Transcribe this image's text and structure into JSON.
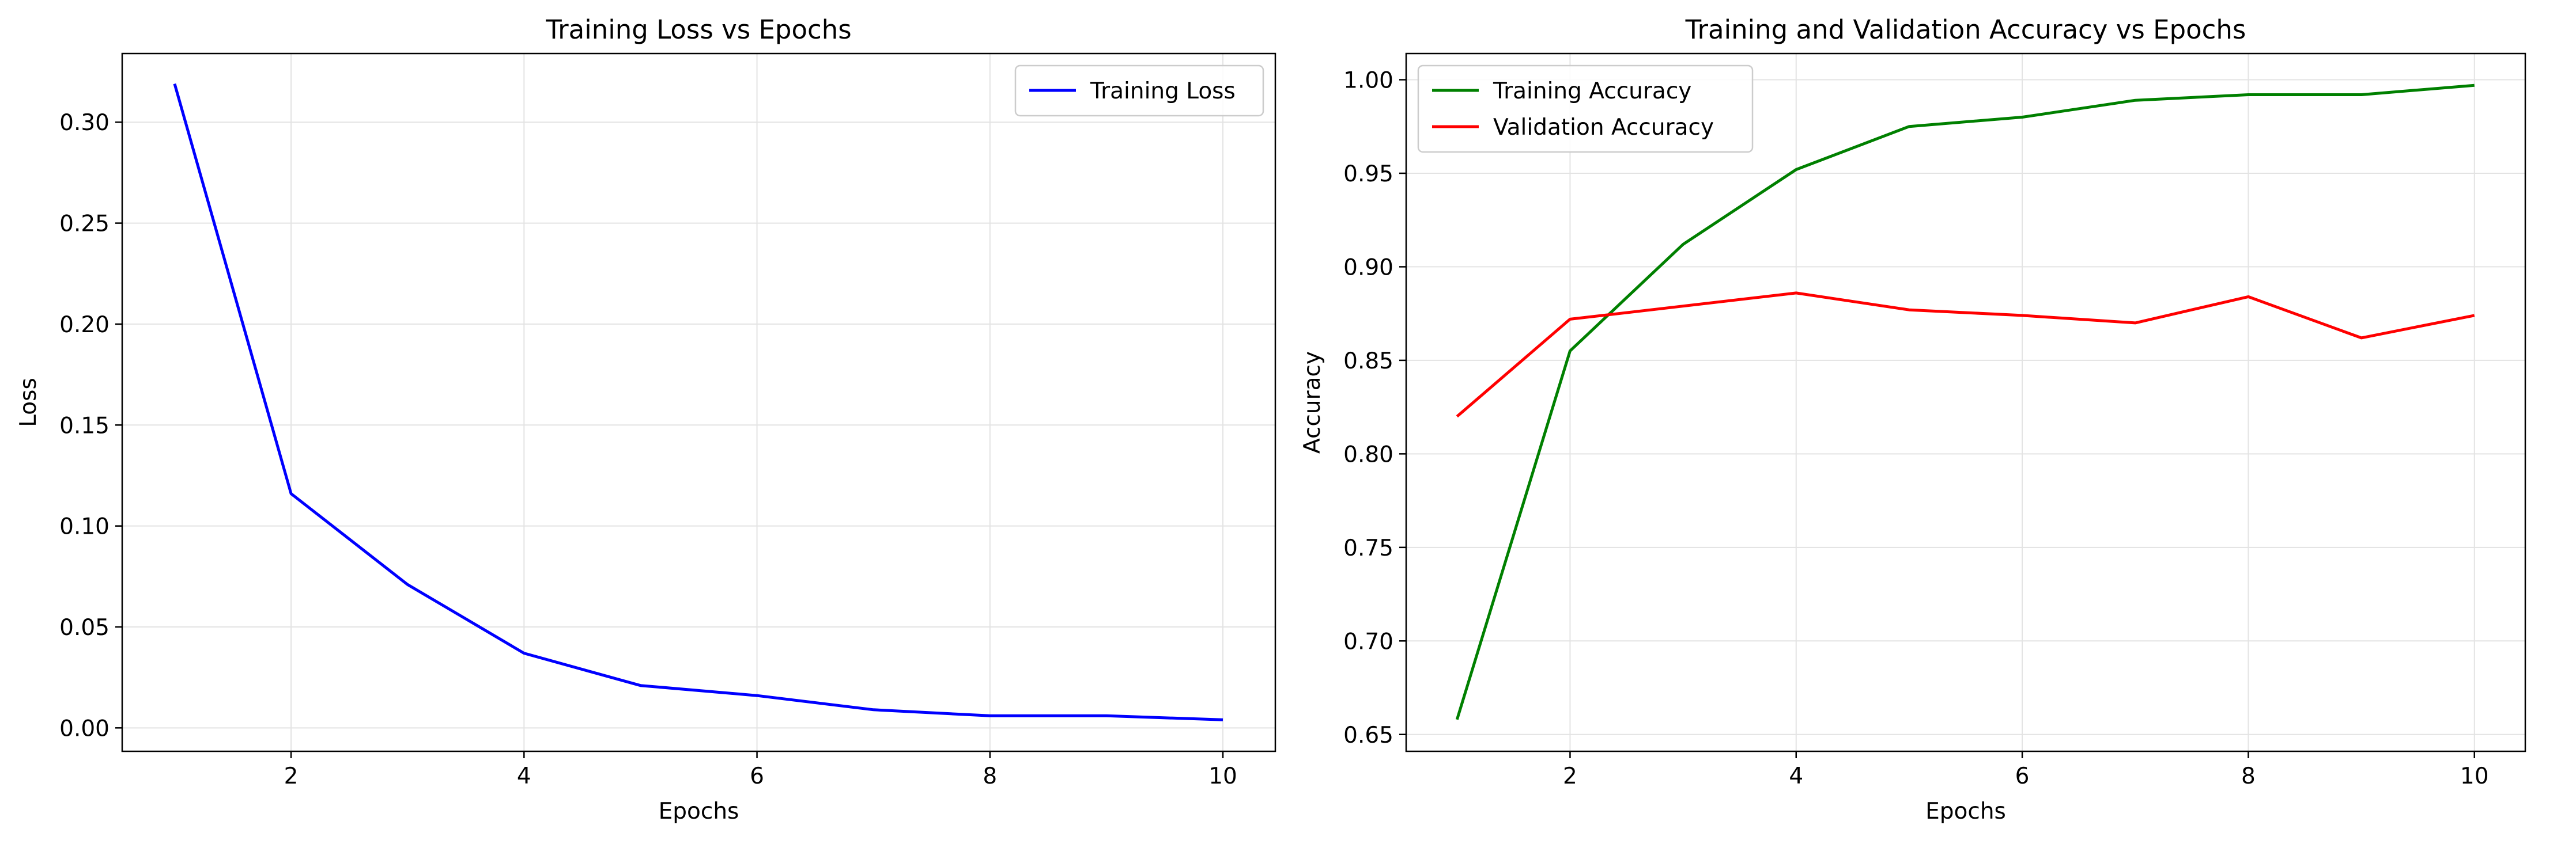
{
  "chart_data": [
    {
      "type": "line",
      "title": "Training Loss vs Epochs",
      "xlabel": "Epochs",
      "ylabel": "Loss",
      "xlim": [
        0.55,
        10.45
      ],
      "ylim": [
        -0.0116,
        0.334
      ],
      "xticks": [
        2,
        4,
        6,
        8,
        10
      ],
      "xtick_labels": [
        "2",
        "4",
        "6",
        "8",
        "10"
      ],
      "yticks": [
        0.0,
        0.05,
        0.1,
        0.15,
        0.2,
        0.25,
        0.3
      ],
      "ytick_labels": [
        "0.00",
        "0.05",
        "0.10",
        "0.15",
        "0.20",
        "0.25",
        "0.30"
      ],
      "grid": true,
      "legend_position": "upper-right",
      "x": [
        1,
        2,
        3,
        4,
        5,
        6,
        7,
        8,
        9,
        10
      ],
      "series": [
        {
          "name": "Training Loss",
          "color": "#0000ff",
          "values": [
            0.319,
            0.116,
            0.071,
            0.037,
            0.021,
            0.016,
            0.009,
            0.006,
            0.006,
            0.004
          ]
        }
      ]
    },
    {
      "type": "line",
      "title": "Training and Validation Accuracy vs Epochs",
      "xlabel": "Epochs",
      "ylabel": "Accuracy",
      "xlim": [
        0.55,
        10.45
      ],
      "ylim": [
        0.641,
        1.014
      ],
      "xticks": [
        2,
        4,
        6,
        8,
        10
      ],
      "xtick_labels": [
        "2",
        "4",
        "6",
        "8",
        "10"
      ],
      "yticks": [
        0.65,
        0.7,
        0.75,
        0.8,
        0.85,
        0.9,
        0.95,
        1.0
      ],
      "ytick_labels": [
        "0.65",
        "0.70",
        "0.75",
        "0.80",
        "0.85",
        "0.90",
        "0.95",
        "1.00"
      ],
      "grid": true,
      "legend_position": "upper-left",
      "x": [
        1,
        2,
        3,
        4,
        5,
        6,
        7,
        8,
        9,
        10
      ],
      "series": [
        {
          "name": "Training Accuracy",
          "color": "#008000",
          "values": [
            0.658,
            0.855,
            0.912,
            0.952,
            0.975,
            0.98,
            0.989,
            0.992,
            0.992,
            0.997
          ]
        },
        {
          "name": "Validation Accuracy",
          "color": "#ff0000",
          "values": [
            0.82,
            0.872,
            0.879,
            0.886,
            0.877,
            0.874,
            0.87,
            0.884,
            0.862,
            0.874
          ]
        }
      ]
    }
  ]
}
